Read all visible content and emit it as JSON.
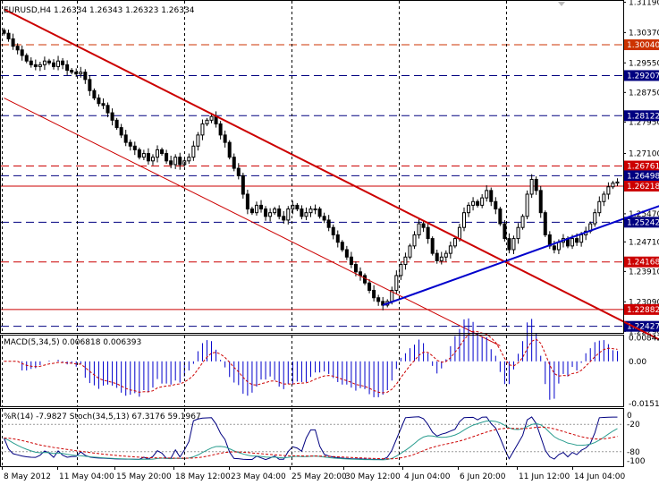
{
  "chart_data": [
    {
      "type": "candlestick",
      "header": "EURUSD,H4 1.26334 1.26343 1.26323 1.26334",
      "ylim": [
        1.2225,
        1.3125
      ],
      "y_ticks": [
        "1.31190",
        "1.30370",
        "1.29550",
        "1.28750",
        "1.27950",
        "1.27100",
        "1.26290",
        "1.25470",
        "1.24710",
        "1.23910",
        "1.23090",
        "1.22290"
      ],
      "horizontal_levels": [
        {
          "value": 1.3004,
          "label": "1.30040",
          "color": "#cc3300",
          "style": "dashed"
        },
        {
          "value": 1.29207,
          "label": "1.29207",
          "color": "#000080",
          "style": "dashed"
        },
        {
          "value": 1.28122,
          "label": "1.28122",
          "color": "#000080",
          "style": "dashed"
        },
        {
          "value": 1.26761,
          "label": "1.26761",
          "color": "#cc0000",
          "style": "dashed"
        },
        {
          "value": 1.26498,
          "label": "1.26498",
          "color": "#000080",
          "style": "dashed"
        },
        {
          "value": 1.26218,
          "label": "1.26218",
          "color": "#cc0000",
          "style": "solid"
        },
        {
          "value": 1.25242,
          "label": "1.25242",
          "color": "#000080",
          "style": "dashed"
        },
        {
          "value": 1.24168,
          "label": "1.24168",
          "color": "#cc0000",
          "style": "dashed"
        },
        {
          "value": 1.22882,
          "label": "1.22882",
          "color": "#cc0000",
          "style": "solid"
        },
        {
          "value": 1.22427,
          "label": "1.22427",
          "color": "#000080",
          "style": "dashed"
        }
      ],
      "close_series": [
        1.3035,
        1.302,
        1.3,
        1.299,
        1.2975,
        1.296,
        1.295,
        1.2945,
        1.295,
        1.296,
        1.2955,
        1.2945,
        1.296,
        1.295,
        1.2935,
        1.293,
        1.2925,
        1.293,
        1.291,
        1.288,
        1.286,
        1.2845,
        1.284,
        1.282,
        1.28,
        1.278,
        1.276,
        1.274,
        1.273,
        1.272,
        1.27,
        1.271,
        1.269,
        1.27,
        1.272,
        1.271,
        1.269,
        1.268,
        1.27,
        1.268,
        1.269,
        1.27,
        1.273,
        1.276,
        1.279,
        1.28,
        1.281,
        1.279,
        1.276,
        1.274,
        1.27,
        1.267,
        1.265,
        1.26,
        1.256,
        1.255,
        1.257,
        1.256,
        1.254,
        1.255,
        1.256,
        1.254,
        1.253,
        1.256,
        1.257,
        1.256,
        1.254,
        1.255,
        1.256,
        1.256,
        1.254,
        1.253,
        1.251,
        1.249,
        1.247,
        1.245,
        1.243,
        1.241,
        1.239,
        1.238,
        1.236,
        1.234,
        1.232,
        1.231,
        1.23,
        1.231,
        1.234,
        1.238,
        1.241,
        1.243,
        1.246,
        1.249,
        1.252,
        1.251,
        1.248,
        1.244,
        1.242,
        1.243,
        1.244,
        1.246,
        1.248,
        1.251,
        1.255,
        1.257,
        1.258,
        1.257,
        1.259,
        1.261,
        1.258,
        1.256,
        1.252,
        1.248,
        1.245,
        1.248,
        1.251,
        1.254,
        1.26,
        1.264,
        1.261,
        1.255,
        1.249,
        1.246,
        1.245,
        1.247,
        1.248,
        1.246,
        1.248,
        1.247,
        1.249,
        1.25,
        1.252,
        1.255,
        1.258,
        1.26,
        1.262,
        1.263,
        1.2633
      ],
      "x_labels": [
        "8 May 2012",
        "11 May 04:00",
        "15 May 20:00",
        "18 May 12:00",
        "23 May 04:00",
        "25 May 20:00",
        "30 May 12:00",
        "4 Jun 04:00",
        "6 Jun 20:00",
        "11 Jun 12:00",
        "14 Jun 04:00"
      ],
      "trendlines": [
        {
          "name": "channel upper",
          "color": "#cc0000",
          "from": [
            0,
            1.31
          ],
          "to": [
            148,
            1.219
          ]
        },
        {
          "name": "channel lower",
          "color": "#cc0000",
          "from": [
            0,
            1.286
          ],
          "to": [
            110,
            1.219
          ]
        },
        {
          "name": "support",
          "color": "#0000cc",
          "from": [
            84,
            1.23
          ],
          "to": [
            148,
            1.258
          ]
        }
      ]
    },
    {
      "type": "bar",
      "header": "MACD(5,34,5) 0.006818 0.006393",
      "ylim": [
        -0.016,
        0.0095
      ],
      "y_ticks": [
        "0.00842",
        "0.00",
        "-0.01512"
      ],
      "signal_color": "#cc0000",
      "bar_color": "#0000cc"
    },
    {
      "type": "line",
      "header": "%R(14) -7.9827 Stoch(34,5,13) 67.3176 59.1967",
      "y_ticks": [
        "0",
        "-20",
        "-80",
        "-100"
      ],
      "levels": [
        -20,
        -80
      ],
      "series": [
        {
          "name": "%R",
          "color": "#000080"
        },
        {
          "name": "Stoch main",
          "color": "#2a9d8f"
        },
        {
          "name": "Stoch signal",
          "color": "#cc0000"
        }
      ]
    }
  ]
}
